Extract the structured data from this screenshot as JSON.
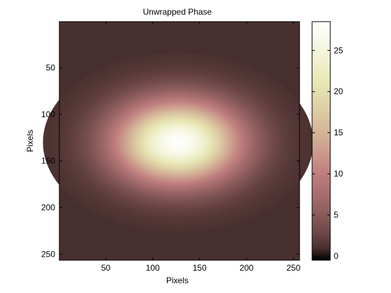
{
  "chart_data": {
    "type": "heatmap",
    "title": "Unwrapped Phase",
    "xlabel": "Pixels",
    "ylabel": "Pixels",
    "xlim": [
      1,
      256
    ],
    "ylim": [
      1,
      256
    ],
    "y_reversed": true,
    "x_ticks": [
      50,
      100,
      150,
      200,
      250
    ],
    "y_ticks": [
      50,
      100,
      150,
      200,
      250
    ],
    "colorbar": {
      "colormap": "pink",
      "clim": [
        -0.5,
        28.5
      ],
      "ticks": [
        0,
        5,
        10,
        15,
        20,
        25
      ]
    },
    "field": {
      "shape": "gaussian",
      "center_x": 127,
      "center_y": 130,
      "sigma_x": 45,
      "sigma_y": 30,
      "peak": 28,
      "background": 1
    },
    "grid": false,
    "colors": {
      "low": "#1e0000",
      "mid": "#c08080",
      "high": "#ffffff"
    }
  }
}
